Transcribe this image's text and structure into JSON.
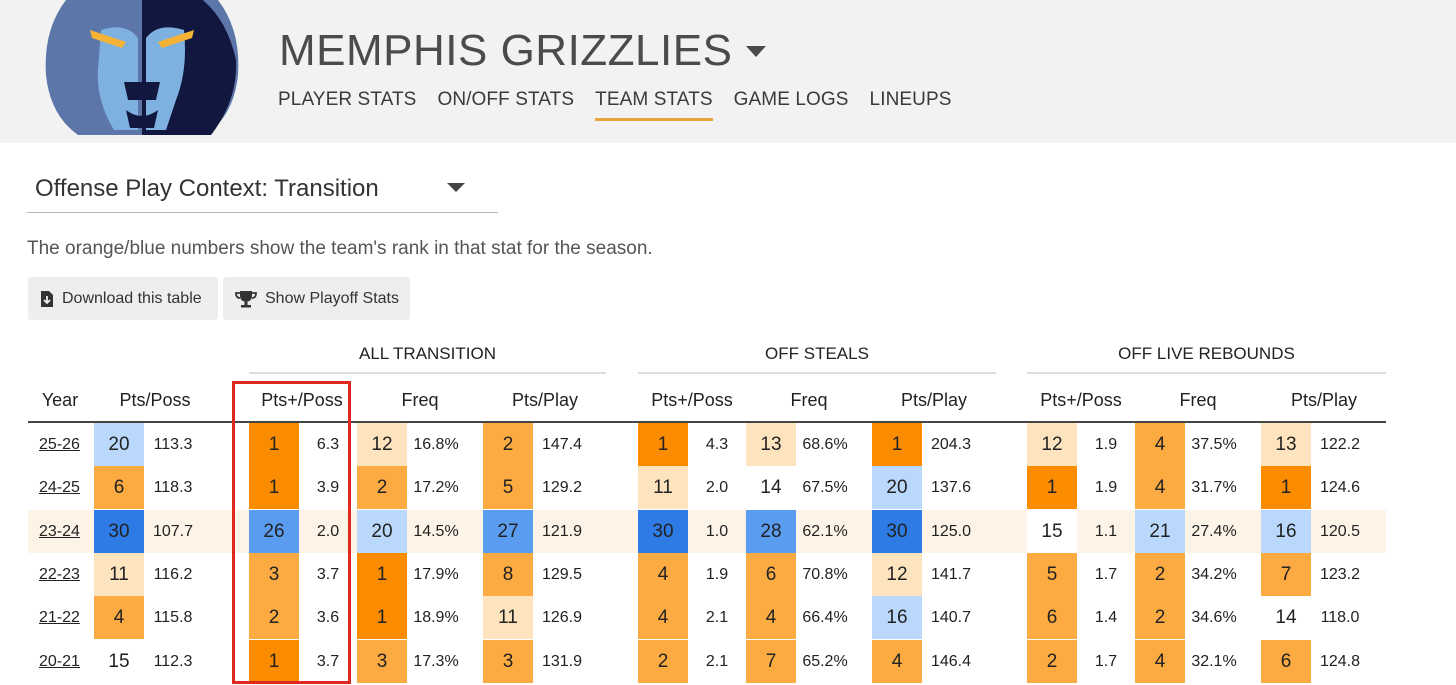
{
  "header": {
    "team_name": "MEMPHIS GRIZZLIES",
    "nav": [
      {
        "label": "PLAYER STATS",
        "active": false
      },
      {
        "label": "ON/OFF STATS",
        "active": false
      },
      {
        "label": "TEAM STATS",
        "active": true
      },
      {
        "label": "GAME LOGS",
        "active": false
      },
      {
        "label": "LINEUPS",
        "active": false
      }
    ]
  },
  "context_select": {
    "value": "Offense Play Context: Transition"
  },
  "description": "The orange/blue numbers show the team's rank in that stat for the season.",
  "buttons": {
    "download": "Download this table",
    "playoff": "Show Playoff Stats"
  },
  "group_headers": [
    "ALL TRANSITION",
    "OFF STEALS",
    "OFF LIVE REBOUNDS"
  ],
  "column_headers": [
    "Year",
    "Pts/Poss",
    "Pts+/Poss",
    "Freq",
    "Pts/Play",
    "Pts+/Poss",
    "Freq",
    "Pts/Play",
    "Pts+/Poss",
    "Freq",
    "Pts/Play"
  ],
  "rows": [
    {
      "year": "25-26",
      "cells": [
        [
          "20",
          "113.3"
        ],
        [
          "1",
          "6.3"
        ],
        [
          "12",
          "16.8%"
        ],
        [
          "2",
          "147.4"
        ],
        [
          "1",
          "4.3"
        ],
        [
          "13",
          "68.6%"
        ],
        [
          "1",
          "204.3"
        ],
        [
          "12",
          "1.9"
        ],
        [
          "4",
          "37.5%"
        ],
        [
          "13",
          "122.2"
        ]
      ]
    },
    {
      "year": "24-25",
      "cells": [
        [
          "6",
          "118.3"
        ],
        [
          "1",
          "3.9"
        ],
        [
          "2",
          "17.2%"
        ],
        [
          "5",
          "129.2"
        ],
        [
          "11",
          "2.0"
        ],
        [
          "14",
          "67.5%"
        ],
        [
          "20",
          "137.6"
        ],
        [
          "1",
          "1.9"
        ],
        [
          "4",
          "31.7%"
        ],
        [
          "1",
          "124.6"
        ]
      ]
    },
    {
      "year": "23-24",
      "cells": [
        [
          "30",
          "107.7"
        ],
        [
          "26",
          "2.0"
        ],
        [
          "20",
          "14.5%"
        ],
        [
          "27",
          "121.9"
        ],
        [
          "30",
          "1.0"
        ],
        [
          "28",
          "62.1%"
        ],
        [
          "30",
          "125.0"
        ],
        [
          "15",
          "1.1"
        ],
        [
          "21",
          "27.4%"
        ],
        [
          "16",
          "120.5"
        ]
      ]
    },
    {
      "year": "22-23",
      "cells": [
        [
          "11",
          "116.2"
        ],
        [
          "3",
          "3.7"
        ],
        [
          "1",
          "17.9%"
        ],
        [
          "8",
          "129.5"
        ],
        [
          "4",
          "1.9"
        ],
        [
          "6",
          "70.8%"
        ],
        [
          "12",
          "141.7"
        ],
        [
          "5",
          "1.7"
        ],
        [
          "2",
          "34.2%"
        ],
        [
          "7",
          "123.2"
        ]
      ]
    },
    {
      "year": "21-22",
      "cells": [
        [
          "4",
          "115.8"
        ],
        [
          "2",
          "3.6"
        ],
        [
          "1",
          "18.9%"
        ],
        [
          "11",
          "126.9"
        ],
        [
          "4",
          "2.1"
        ],
        [
          "4",
          "66.4%"
        ],
        [
          "16",
          "140.7"
        ],
        [
          "6",
          "1.4"
        ],
        [
          "2",
          "34.6%"
        ],
        [
          "14",
          "118.0"
        ]
      ]
    },
    {
      "year": "20-21",
      "cells": [
        [
          "15",
          "112.3"
        ],
        [
          "1",
          "3.7"
        ],
        [
          "3",
          "17.3%"
        ],
        [
          "3",
          "131.9"
        ],
        [
          "2",
          "2.1"
        ],
        [
          "7",
          "65.2%"
        ],
        [
          "4",
          "146.4"
        ],
        [
          "2",
          "1.7"
        ],
        [
          "4",
          "32.1%"
        ],
        [
          "6",
          "124.8"
        ]
      ]
    }
  ],
  "colors": {
    "rank_1": "#fb8c00",
    "rank_top": "#fbab42",
    "rank_mid": "#fde4be",
    "rank_neutral": "#ffffff",
    "rank_low": "#bad8fb",
    "rank_bottom": "#5a9cf0",
    "rank_worst": "#2e7be6",
    "highlight_box": "#e0281e",
    "nav_active": "#e8a33d"
  }
}
